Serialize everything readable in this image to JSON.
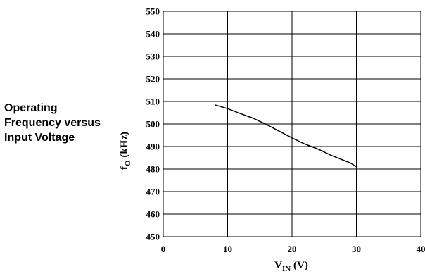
{
  "side_title": [
    "Operating",
    "Frequency versus",
    "Input Voltage"
  ],
  "chart_data": {
    "type": "line",
    "title": "Operating Frequency versus Input Voltage",
    "xlabel": {
      "main": "V",
      "sub": "IN",
      "unit": " (V)"
    },
    "ylabel": {
      "main": "f",
      "sub": "O",
      "unit": " (kHz)"
    },
    "xlim": [
      0,
      40
    ],
    "ylim": [
      450,
      550
    ],
    "xticks": [
      0,
      10,
      20,
      30,
      40
    ],
    "yticks": [
      450,
      460,
      470,
      480,
      490,
      500,
      510,
      520,
      530,
      540,
      550
    ],
    "grid": true,
    "series": [
      {
        "x": [
          8,
          10,
          12,
          14,
          16,
          18,
          20,
          22,
          24,
          26,
          28,
          29,
          30
        ],
        "y": [
          508.5,
          506.8,
          504.6,
          502.5,
          499.8,
          496.8,
          493.8,
          491.1,
          488.9,
          486.2,
          483.9,
          482.8,
          481.0
        ]
      }
    ]
  }
}
